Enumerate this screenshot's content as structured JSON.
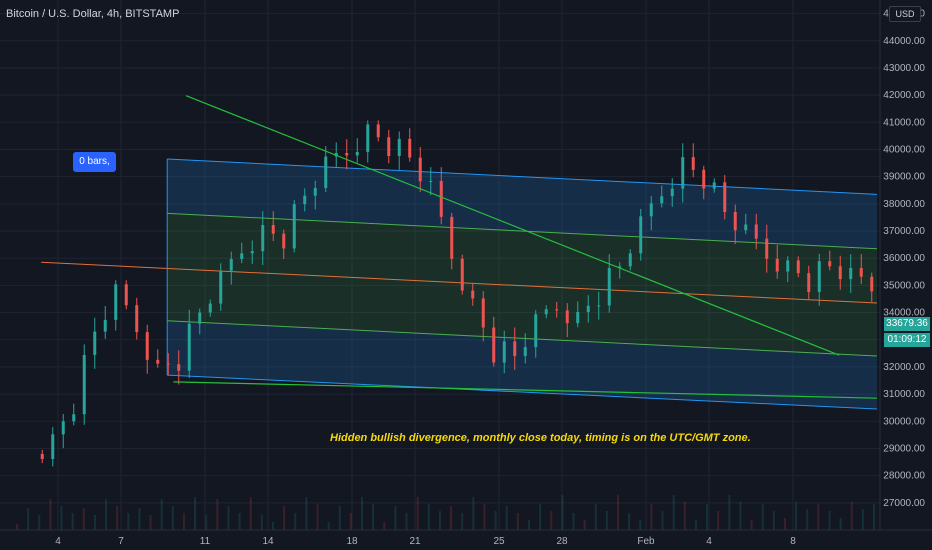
{
  "header": {
    "symbol_title": "Bitcoin / U.S. Dollar, 4h, BITSTAMP",
    "currency": "USD",
    "bars_badge": "0 bars,"
  },
  "annotation": "Hidden bullish divergence, monthly close today, timing is on the UTC/GMT zone.",
  "current_price_label": "33679.36",
  "countdown_label": "01:09:12",
  "colors": {
    "background": "#131722",
    "up_candle": "#26a69a",
    "down_candle": "#ef5350",
    "channel_blue": "#2196f3",
    "channel_green": "#4caf50",
    "median_line": "#e0703a",
    "trendline": "#22c13a",
    "annotation": "#f5d90a"
  },
  "chart_data": {
    "type": "candlestick",
    "title": "Bitcoin / U.S. Dollar, 4h, BITSTAMP",
    "y_axis": {
      "side": "right",
      "range": [
        26000,
        45500
      ],
      "ticks": [
        "45000.00",
        "44000.00",
        "43000.00",
        "42000.00",
        "41000.00",
        "40000.00",
        "39000.00",
        "38000.00",
        "37000.00",
        "36000.00",
        "35000.00",
        "34000.00",
        "33000.00",
        "32000.00",
        "31000.00",
        "30000.00",
        "29000.00",
        "28000.00",
        "27000.00"
      ]
    },
    "x_axis": {
      "ticks": [
        "4",
        "7",
        "11",
        "14",
        "18",
        "21",
        "25",
        "28",
        "Feb",
        "4",
        "8"
      ]
    },
    "last_price": 33679.36,
    "price_path": [
      [
        1,
        28800
      ],
      [
        2,
        29300
      ],
      [
        3,
        30700
      ],
      [
        4,
        33300
      ],
      [
        5,
        34600
      ],
      [
        6,
        33500
      ],
      [
        7,
        31900
      ],
      [
        8,
        32300
      ],
      [
        9,
        34000
      ],
      [
        10,
        35100
      ],
      [
        11,
        36400
      ],
      [
        12,
        37000
      ],
      [
        13,
        36800
      ],
      [
        14,
        38300
      ],
      [
        15,
        39300
      ],
      [
        16,
        40000
      ],
      [
        17,
        40700
      ],
      [
        18,
        40200
      ],
      [
        19,
        39700
      ],
      [
        20,
        38400
      ],
      [
        21,
        36200
      ],
      [
        22,
        34300
      ],
      [
        23,
        32600
      ],
      [
        24,
        32400
      ],
      [
        25,
        33500
      ],
      [
        26,
        34300
      ],
      [
        27,
        33800
      ],
      [
        28,
        34700
      ],
      [
        29,
        35700
      ],
      [
        30,
        37100
      ],
      [
        31,
        38500
      ],
      [
        32,
        39500
      ],
      [
        33,
        39000
      ],
      [
        34,
        37700
      ],
      [
        35,
        36800
      ],
      [
        36,
        36200
      ],
      [
        37,
        35700
      ],
      [
        38,
        35200
      ],
      [
        39,
        35700
      ],
      [
        40,
        35200
      ],
      [
        41,
        35000
      ],
      [
        42,
        35500
      ],
      [
        43,
        36600
      ],
      [
        44,
        37000
      ],
      [
        45,
        36200
      ],
      [
        46,
        35100
      ],
      [
        47,
        33900
      ],
      [
        48,
        33000
      ],
      [
        49,
        32100
      ],
      [
        50,
        31700
      ],
      [
        51,
        30900
      ],
      [
        52,
        31400
      ],
      [
        53,
        31900
      ],
      [
        54,
        32700
      ],
      [
        55,
        32300
      ],
      [
        56,
        32600
      ],
      [
        57,
        32800
      ],
      [
        58,
        32200
      ],
      [
        59,
        33600
      ],
      [
        60,
        32900
      ],
      [
        61,
        32600
      ],
      [
        62,
        32500
      ],
      [
        63,
        32400
      ],
      [
        64,
        32000
      ],
      [
        65,
        31500
      ],
      [
        66,
        31000
      ],
      [
        67,
        30500
      ],
      [
        68,
        31000
      ],
      [
        69,
        32000
      ],
      [
        70,
        33500
      ],
      [
        71,
        37400
      ],
      [
        72,
        35500
      ],
      [
        73,
        34000
      ],
      [
        74,
        33300
      ],
      [
        75,
        33800
      ],
      [
        76,
        34600
      ],
      [
        77,
        34200
      ],
      [
        78,
        33900
      ],
      [
        79,
        33679
      ]
    ],
    "channel": {
      "upper_outer": [
        [
          7.2,
          39650
        ],
        [
          41,
          38350
        ]
      ],
      "upper_inner": [
        [
          7.2,
          37650
        ],
        [
          41,
          36350
        ]
      ],
      "median": [
        [
          1.2,
          35850
        ],
        [
          41,
          34350
        ]
      ],
      "lower_inner": [
        [
          7.2,
          33700
        ],
        [
          41,
          32400
        ]
      ],
      "lower_outer": [
        [
          7.2,
          31700
        ],
        [
          41,
          30450
        ]
      ]
    },
    "trendlines": [
      {
        "from": [
          8.1,
          41980
        ],
        "to": [
          39.2,
          32430
        ]
      },
      {
        "from": [
          7.5,
          31450
        ],
        "to": [
          41,
          30850
        ]
      }
    ],
    "annotations": [
      "0 bars,",
      "Hidden bullish divergence, monthly close today, timing is on the UTC/GMT zone."
    ]
  }
}
